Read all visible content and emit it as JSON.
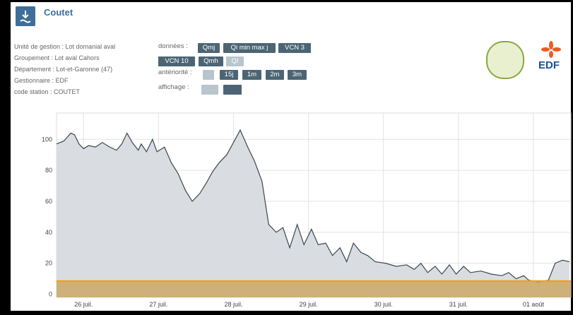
{
  "header": {
    "title": "Coutet"
  },
  "info": [
    "Unité de gestion : Lot domanial aval",
    "Groupement : Lot aval Cahors",
    "Département : Lot-et-Garonne (47)",
    "Gestionnaire : EDF",
    "code station : COUTET"
  ],
  "controls": {
    "donnees": {
      "label": "données :",
      "buttons": [
        "Qmj",
        "Qi min max j",
        "VCN 3",
        "VCN 10",
        "Qmh",
        "QI"
      ]
    },
    "anteriorite": {
      "label": "antériorité :",
      "buttons": [
        "15j",
        "1m",
        "2m",
        "3m"
      ]
    },
    "affichage": {
      "label": "affichage :"
    }
  },
  "logos": {
    "edf": "EDF"
  },
  "chart_data": {
    "type": "area",
    "x": [
      -0.36,
      -0.26,
      -0.17,
      -0.12,
      -0.06,
      0,
      0.07,
      0.16,
      0.25,
      0.35,
      0.44,
      0.51,
      0.58,
      0.65,
      0.73,
      0.77,
      0.84,
      0.92,
      0.98,
      1.08,
      1.17,
      1.26,
      1.36,
      1.45,
      1.55,
      1.64,
      1.72,
      1.81,
      1.91,
      2.0,
      2.09,
      2.19,
      2.28,
      2.38,
      2.47,
      2.57,
      2.66,
      2.75,
      2.85,
      2.94,
      3.04,
      3.13,
      3.23,
      3.32,
      3.42,
      3.51,
      3.6,
      3.7,
      3.79,
      3.89,
      4.03,
      4.17,
      4.31,
      4.41,
      4.5,
      4.59,
      4.69,
      4.78,
      4.88,
      4.97,
      5.07,
      5.16,
      5.3,
      5.44,
      5.58,
      5.67,
      5.77,
      5.87,
      5.94,
      6.06,
      6.2,
      6.29,
      6.39,
      6.48
    ],
    "values": [
      97,
      99,
      104,
      103,
      97,
      94,
      96,
      95,
      98,
      95,
      93,
      97,
      104,
      98,
      93,
      97,
      92,
      100,
      92,
      95,
      85,
      78,
      67,
      60,
      65,
      72,
      79,
      85,
      90,
      98,
      106,
      95,
      86,
      73,
      45,
      40,
      43,
      30,
      45,
      32,
      42,
      32,
      33,
      25,
      30,
      21,
      33,
      27,
      25,
      21,
      20,
      18,
      19,
      16,
      20,
      14,
      18,
      13,
      19,
      13,
      18,
      14,
      15,
      13,
      12,
      14,
      10,
      12,
      9,
      8,
      9,
      20,
      22,
      21
    ],
    "color": "#3a4650",
    "fill": "#d9dde1",
    "threshold": {
      "value": 8.5,
      "color": "#f0a020",
      "fill": "#cdb07a"
    },
    "xlim": [
      -0.36,
      6.5
    ],
    "xticks": [
      {
        "value": 0,
        "label": "26 juil."
      },
      {
        "value": 1,
        "label": "27 juil."
      },
      {
        "value": 2,
        "label": "28 juil."
      },
      {
        "value": 3,
        "label": "29 juil."
      },
      {
        "value": 4,
        "label": "30 juil."
      },
      {
        "value": 5,
        "label": "31 juil."
      },
      {
        "value": 6,
        "label": "01 août"
      }
    ],
    "ylim": [
      -2,
      117
    ],
    "yticks": [
      0,
      20,
      40,
      60,
      80,
      100
    ],
    "grid": true
  }
}
